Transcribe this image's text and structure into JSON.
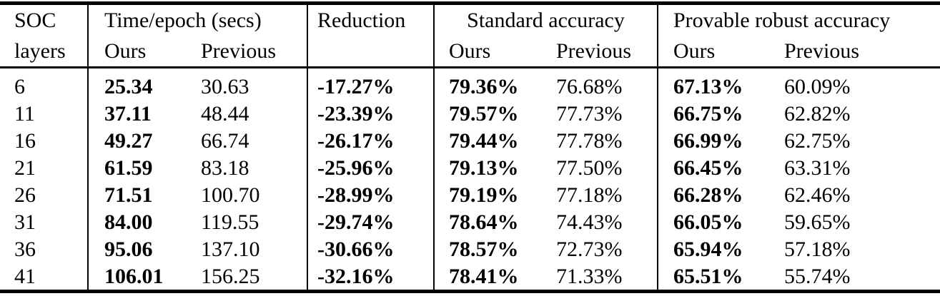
{
  "table": {
    "header": {
      "soc_line1": "SOC",
      "soc_line2": "layers",
      "group_time": "Time/epoch (secs)",
      "group_reduction": "Reduction",
      "group_standard": "Standard accuracy",
      "group_provable": "Provable robust accuracy",
      "sub_ours": "Ours",
      "sub_previous": "Previous"
    },
    "rows": [
      {
        "soc": "6",
        "time_ours": "25.34",
        "time_prev": "30.63",
        "reduction": "-17.27%",
        "std_ours": "79.36%",
        "std_prev": "76.68%",
        "rob_ours": "67.13%",
        "rob_prev": "60.09%"
      },
      {
        "soc": "11",
        "time_ours": "37.11",
        "time_prev": "48.44",
        "reduction": "-23.39%",
        "std_ours": "79.57%",
        "std_prev": "77.73%",
        "rob_ours": "66.75%",
        "rob_prev": "62.82%"
      },
      {
        "soc": "16",
        "time_ours": "49.27",
        "time_prev": "66.74",
        "reduction": "-26.17%",
        "std_ours": "79.44%",
        "std_prev": "77.78%",
        "rob_ours": "66.99%",
        "rob_prev": "62.75%"
      },
      {
        "soc": "21",
        "time_ours": "61.59",
        "time_prev": "83.18",
        "reduction": "-25.96%",
        "std_ours": "79.13%",
        "std_prev": "77.50%",
        "rob_ours": "66.45%",
        "rob_prev": "63.31%"
      },
      {
        "soc": "26",
        "time_ours": "71.51",
        "time_prev": "100.70",
        "reduction": "-28.99%",
        "std_ours": "79.19%",
        "std_prev": "77.18%",
        "rob_ours": "66.28%",
        "rob_prev": "62.46%"
      },
      {
        "soc": "31",
        "time_ours": "84.00",
        "time_prev": "119.55",
        "reduction": "-29.74%",
        "std_ours": "78.64%",
        "std_prev": "74.43%",
        "rob_ours": "66.05%",
        "rob_prev": "59.65%"
      },
      {
        "soc": "36",
        "time_ours": "95.06",
        "time_prev": "137.10",
        "reduction": "-30.66%",
        "std_ours": "78.57%",
        "std_prev": "72.73%",
        "rob_ours": "65.94%",
        "rob_prev": "57.18%"
      },
      {
        "soc": "41",
        "time_ours": "106.01",
        "time_prev": "156.25",
        "reduction": "-32.16%",
        "std_ours": "78.41%",
        "std_prev": "71.33%",
        "rob_ours": "65.51%",
        "rob_prev": "55.74%"
      }
    ],
    "styles": {
      "text_color": "#000000",
      "background_color": "#ffffff",
      "rule_color": "#000000",
      "bold_columns": [
        "time_ours",
        "reduction",
        "std_ours",
        "rob_ours"
      ]
    }
  }
}
